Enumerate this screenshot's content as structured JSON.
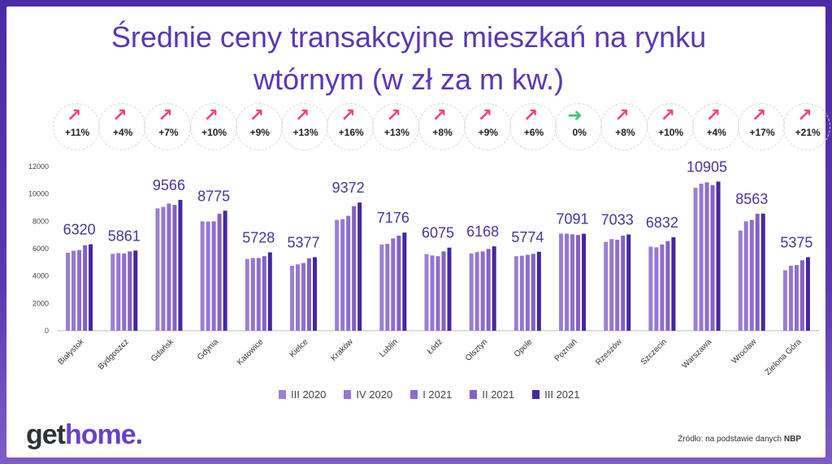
{
  "title_line1": "Średnie ceny transakcyjne mieszkań na rynku",
  "title_line2": "wtórnym (w zł za m kw.)",
  "logo": {
    "part1": "get",
    "part2": "home."
  },
  "source": {
    "text": "Źródło: na podstawie danych ",
    "bold": "NBP"
  },
  "badges": [
    {
      "pct": "+11%",
      "trend": "up"
    },
    {
      "pct": "+4%",
      "trend": "up"
    },
    {
      "pct": "+7%",
      "trend": "up"
    },
    {
      "pct": "+10%",
      "trend": "up"
    },
    {
      "pct": "+9%",
      "trend": "up"
    },
    {
      "pct": "+13%",
      "trend": "up"
    },
    {
      "pct": "+16%",
      "trend": "up"
    },
    {
      "pct": "+13%",
      "trend": "up"
    },
    {
      "pct": "+8%",
      "trend": "up"
    },
    {
      "pct": "+9%",
      "trend": "up"
    },
    {
      "pct": "+6%",
      "trend": "up"
    },
    {
      "pct": "0%",
      "trend": "flat"
    },
    {
      "pct": "+8%",
      "trend": "up"
    },
    {
      "pct": "+10%",
      "trend": "up"
    },
    {
      "pct": "+4%",
      "trend": "up"
    },
    {
      "pct": "+17%",
      "trend": "up"
    },
    {
      "pct": "+21%",
      "trend": "up"
    }
  ],
  "colors": {
    "up_arrow": "#f0427d",
    "flat_arrow": "#3fc27a",
    "title": "#5a37b5",
    "label": "#4b3596"
  },
  "chart_data": {
    "type": "bar",
    "ylim": [
      0,
      12000
    ],
    "yticks": [
      0,
      2000,
      4000,
      6000,
      8000,
      10000,
      12000
    ],
    "categories": [
      "Białystok",
      "Bydgoszcz",
      "Gdańsk",
      "Gdynia",
      "Katowice",
      "Kielce",
      "Kraków",
      "Lublin",
      "Łódź",
      "Olsztyn",
      "Opole",
      "Poznań",
      "Rzeszów",
      "Szczecin",
      "Warszawa",
      "Wrocław",
      "Zielona Góra"
    ],
    "series": [
      {
        "name": "III 2020",
        "color": "#9b7fd4",
        "values": [
          5700,
          5620,
          8950,
          8000,
          5250,
          4750,
          8100,
          6300,
          5600,
          5650,
          5450,
          7100,
          6500,
          6150,
          10450,
          7320,
          4420
        ]
      },
      {
        "name": "IV 2020",
        "color": "#9676d1",
        "values": [
          5850,
          5680,
          9050,
          7980,
          5320,
          4850,
          8150,
          6350,
          5500,
          5750,
          5480,
          7100,
          6700,
          6100,
          10750,
          8000,
          4750
        ]
      },
      {
        "name": "I 2021",
        "color": "#8f6dcc",
        "values": [
          5900,
          5650,
          9300,
          8000,
          5320,
          4950,
          8400,
          6750,
          5450,
          5800,
          5550,
          7050,
          6650,
          6300,
          10850,
          8100,
          4800
        ]
      },
      {
        "name": "II 2021",
        "color": "#8560c6",
        "values": [
          6250,
          5800,
          9200,
          8550,
          5450,
          5300,
          9100,
          6950,
          5800,
          5980,
          5620,
          7000,
          6950,
          6550,
          10650,
          8550,
          5150
        ]
      },
      {
        "name": "III 2021",
        "color": "#4527a0",
        "values": [
          6320,
          5861,
          9566,
          8775,
          5728,
          5377,
          9372,
          7176,
          6075,
          6168,
          5774,
          7091,
          7033,
          6832,
          10905,
          8563,
          5375
        ]
      }
    ],
    "data_labels": [
      "6320",
      "5861",
      "9566",
      "8775",
      "5728",
      "5377",
      "9372",
      "7176",
      "6075",
      "6168",
      "5774",
      "7091",
      "7033",
      "6832",
      "10905",
      "8563",
      "5375"
    ]
  }
}
